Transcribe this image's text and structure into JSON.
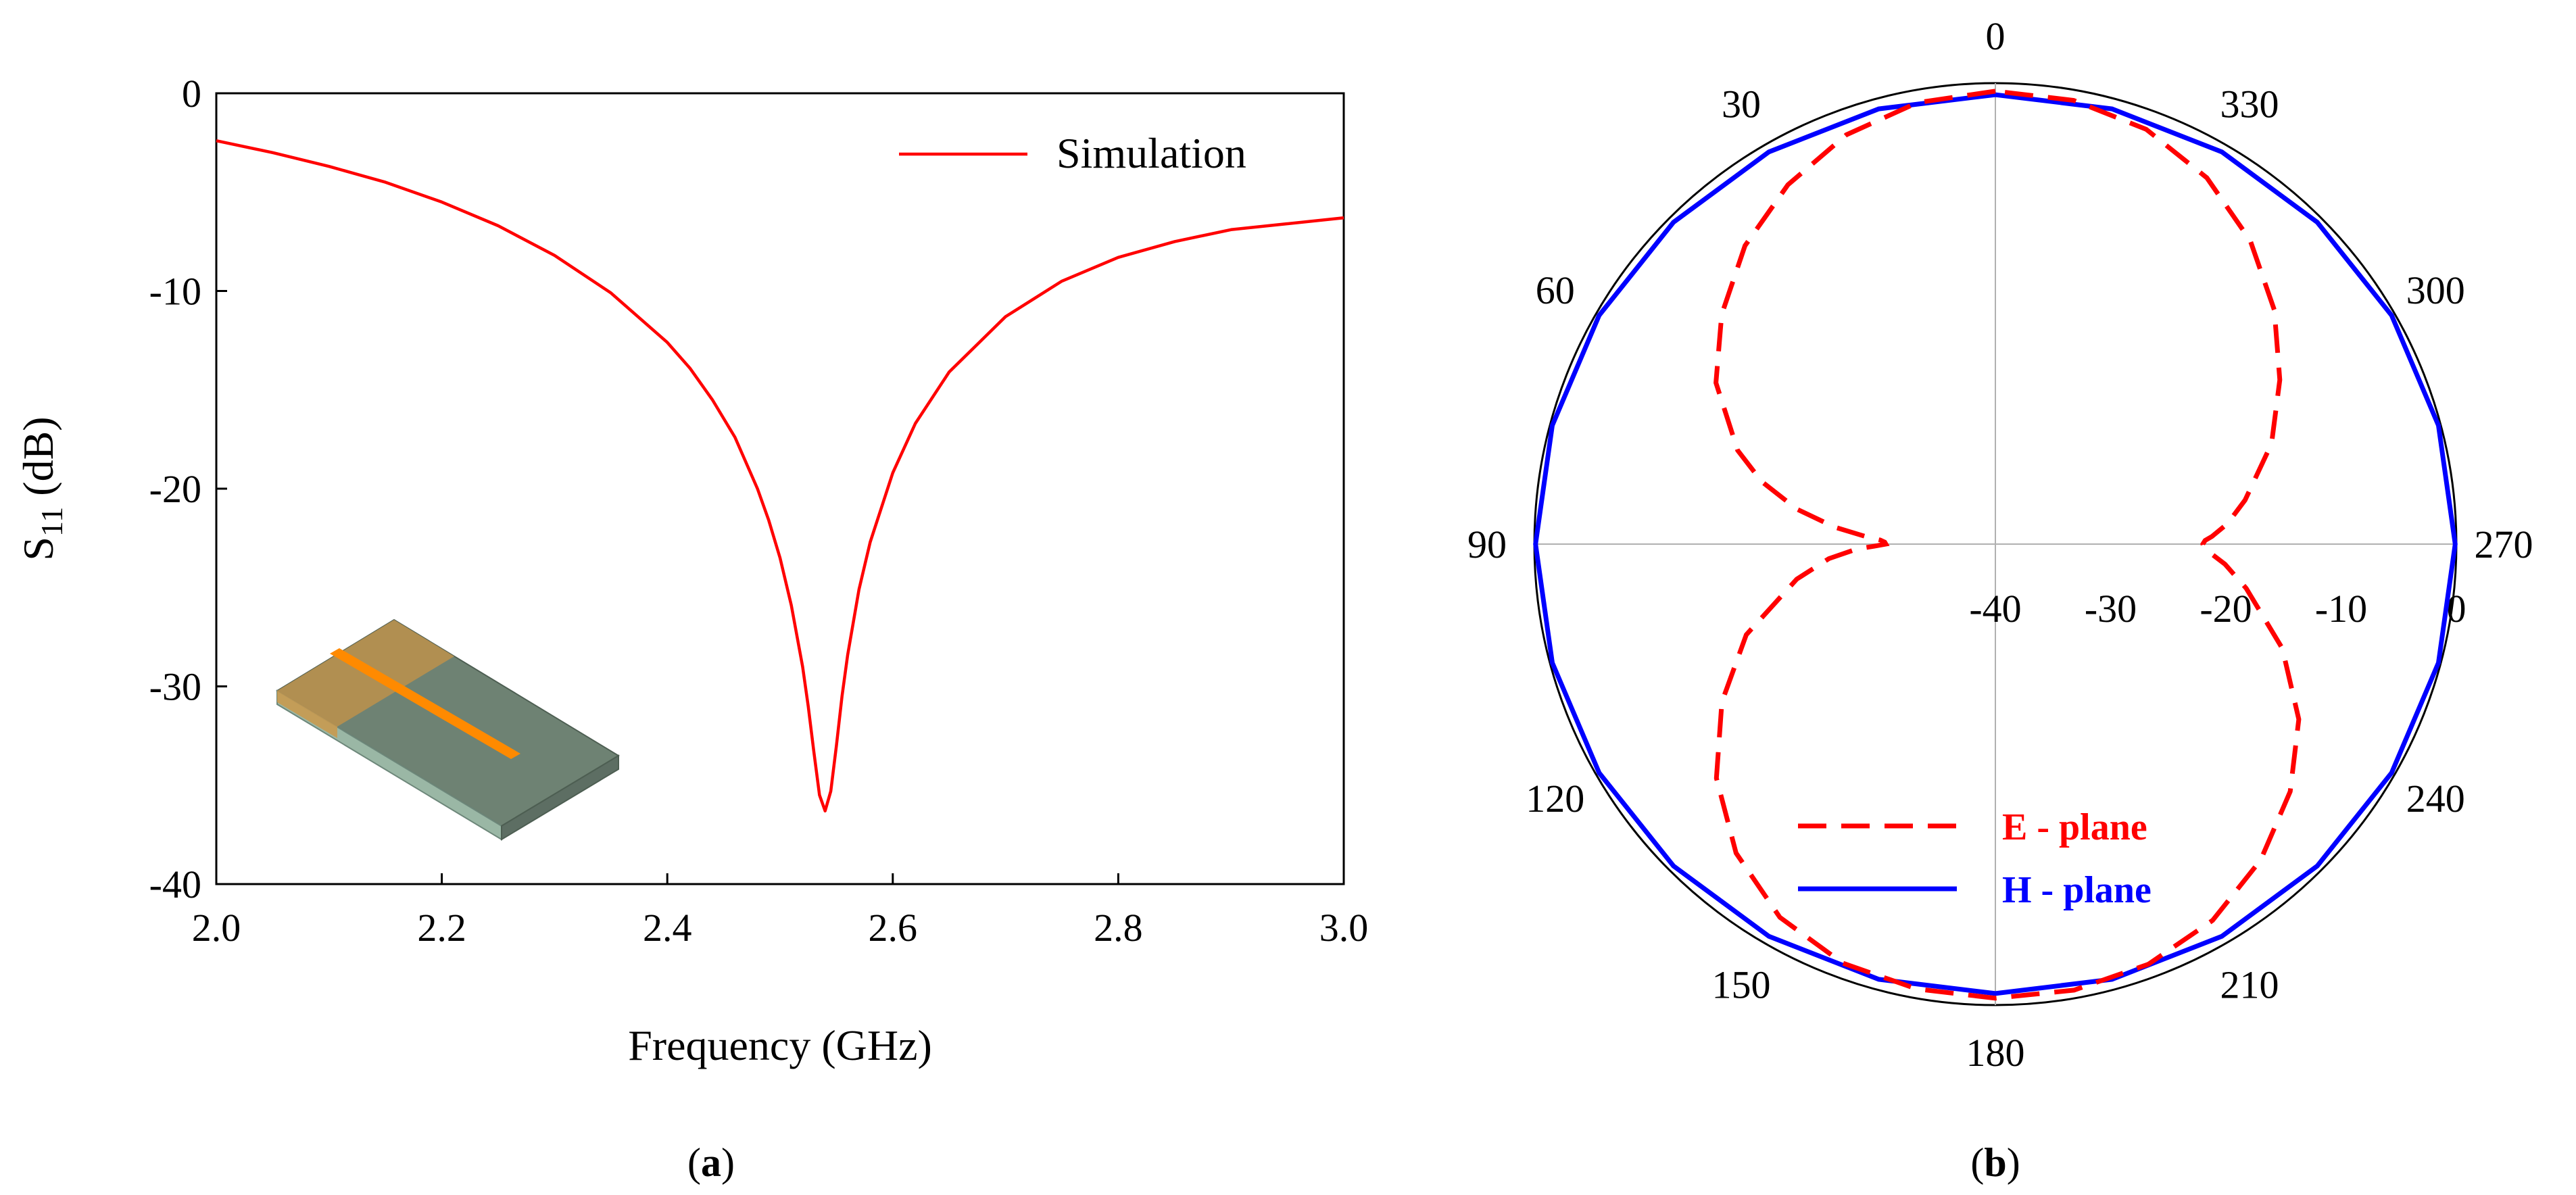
{
  "chart_data": [
    {
      "type": "line",
      "panel": "a",
      "title": "",
      "xlabel": "Frequency (GHz)",
      "ylabel_main": "S",
      "ylabel_sub": "11",
      "ylabel_unit": " (dB)",
      "xlim": [
        2.0,
        3.0
      ],
      "ylim": [
        -40,
        0
      ],
      "xticks": [
        "2.0",
        "2.2",
        "2.4",
        "2.6",
        "2.8",
        "3.0"
      ],
      "xtick_values": [
        2.0,
        2.2,
        2.4,
        2.6,
        2.8,
        3.0
      ],
      "yticks": [
        "0",
        "-10",
        "-20",
        "-30",
        "-40"
      ],
      "ytick_values": [
        0,
        -10,
        -20,
        -30,
        -40
      ],
      "legend": "top-right",
      "series": [
        {
          "name": "Simulation",
          "color": "#ff0000",
          "x": [
            2.0,
            2.05,
            2.1,
            2.15,
            2.2,
            2.25,
            2.3,
            2.35,
            2.4,
            2.42,
            2.44,
            2.46,
            2.48,
            2.49,
            2.5,
            2.51,
            2.52,
            2.525,
            2.53,
            2.535,
            2.54,
            2.545,
            2.55,
            2.555,
            2.56,
            2.57,
            2.58,
            2.6,
            2.62,
            2.65,
            2.7,
            2.75,
            2.8,
            2.85,
            2.9,
            2.95,
            3.0
          ],
          "y": [
            -2.4,
            -3.0,
            -3.7,
            -4.5,
            -5.5,
            -6.7,
            -8.2,
            -10.1,
            -12.6,
            -13.9,
            -15.5,
            -17.4,
            -20.0,
            -21.6,
            -23.5,
            -25.9,
            -29.0,
            -31.0,
            -33.3,
            -35.5,
            -36.3,
            -35.3,
            -33.0,
            -30.5,
            -28.4,
            -25.1,
            -22.7,
            -19.2,
            -16.7,
            -14.1,
            -11.3,
            -9.5,
            -8.3,
            -7.5,
            -6.9,
            -6.6,
            -6.3
          ]
        }
      ],
      "inset_image": "antenna-model"
    },
    {
      "type": "polar",
      "panel": "b",
      "title": "",
      "angle_labels": [
        "0",
        "30",
        "60",
        "90",
        "120",
        "150",
        "180",
        "210",
        "240",
        "270",
        "300",
        "330"
      ],
      "angle_values": [
        0,
        30,
        60,
        90,
        120,
        150,
        180,
        210,
        240,
        270,
        300,
        330
      ],
      "angle_direction": "counterclockwise",
      "radial_labels": [
        "-40",
        "-30",
        "-20",
        "-10",
        "0"
      ],
      "radial_values": [
        -40,
        -30,
        -20,
        -10,
        0
      ],
      "rlim": [
        -40,
        0
      ],
      "legend": "bottom-center",
      "series": [
        {
          "name": "E - plane",
          "color": "#ff0000",
          "style": "dashed",
          "angles": [
            0,
            10,
            20,
            30,
            40,
            50,
            60,
            70,
            75,
            80,
            84,
            87,
            88,
            89,
            90,
            91,
            92,
            95,
            100,
            110,
            120,
            130,
            140,
            150,
            160,
            170,
            180,
            190,
            200,
            210,
            220,
            230,
            240,
            250,
            260,
            265,
            268,
            269,
            270,
            271,
            272,
            275,
            280,
            290,
            300,
            310,
            320,
            330,
            340,
            350,
            360
          ],
          "values": [
            -0.7,
            -1.1,
            -2.2,
            -4.0,
            -6.2,
            -9.0,
            -12.0,
            -16.2,
            -19.0,
            -22.5,
            -26.0,
            -29.0,
            -30.0,
            -30.4,
            -30.5,
            -29.5,
            -28.0,
            -25.5,
            -22.5,
            -17.0,
            -12.6,
            -8.4,
            -5.0,
            -2.6,
            -1.3,
            -0.8,
            -0.6,
            -0.7,
            -1.2,
            -2.3,
            -4.2,
            -6.6,
            -9.6,
            -13.5,
            -17.9,
            -20.0,
            -21.5,
            -21.9,
            -22.0,
            -21.8,
            -21.2,
            -19.8,
            -18.0,
            -14.5,
            -11.5,
            -8.4,
            -5.6,
            -3.3,
            -1.7,
            -0.9,
            -0.7
          ]
        },
        {
          "name": "H - plane",
          "color": "#0000ff",
          "style": "solid",
          "angles": [
            0,
            15,
            30,
            45,
            60,
            75,
            90,
            105,
            120,
            135,
            150,
            165,
            180,
            195,
            210,
            225,
            240,
            255,
            270,
            285,
            300,
            315,
            330,
            345,
            360
          ],
          "values": [
            -1.0,
            -0.9,
            -0.7,
            -0.5,
            -0.3,
            -0.2,
            -0.1,
            -0.2,
            -0.3,
            -0.5,
            -0.7,
            -0.9,
            -1.0,
            -0.9,
            -0.7,
            -0.5,
            -0.3,
            -0.2,
            -0.1,
            -0.2,
            -0.3,
            -0.5,
            -0.7,
            -0.9,
            -1.0
          ]
        }
      ]
    }
  ],
  "captions": {
    "panel_a_open": "(",
    "panel_a_letter": "a",
    "panel_a_close": ")",
    "panel_b_open": "(",
    "panel_b_letter": "b",
    "panel_b_close": ")"
  }
}
